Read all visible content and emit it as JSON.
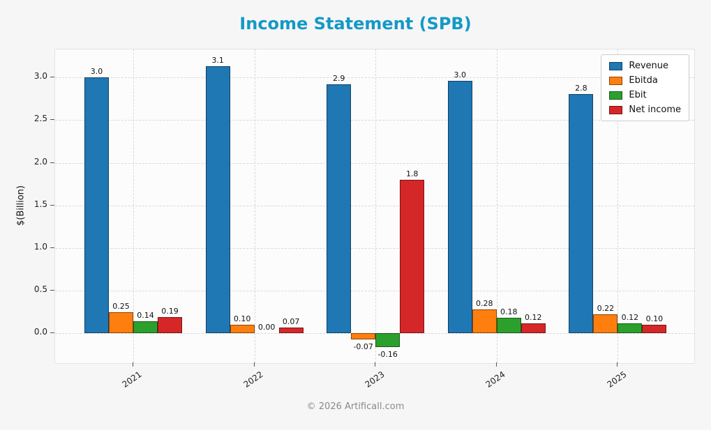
{
  "title": "Income Statement (SPB)",
  "ylabel": "$(Billion)",
  "footer": "© 2026 Artificall.com",
  "colors": {
    "title": "#1499c6",
    "grid": "#d8d8d8",
    "plot_background": "#fcfcfc",
    "figure_background": "#f6f6f7"
  },
  "chart_data": {
    "type": "bar",
    "title": "Income Statement (SPB)",
    "xlabel": "",
    "ylabel": "$(Billion)",
    "categories": [
      "2021",
      "2022",
      "2023",
      "2024",
      "2025"
    ],
    "series": [
      {
        "name": "Revenue",
        "color": "#1f77b4",
        "values": [
          3.0,
          3.13,
          2.92,
          2.96,
          2.81
        ],
        "labels": [
          "3.0",
          "3.1",
          "2.9",
          "3.0",
          "2.8"
        ]
      },
      {
        "name": "Ebitda",
        "color": "#ff7f0e",
        "values": [
          0.25,
          0.1,
          -0.07,
          0.28,
          0.22
        ],
        "labels": [
          "0.25",
          "0.10",
          "-0.07",
          "0.28",
          "0.22"
        ]
      },
      {
        "name": "Ebit",
        "color": "#2ca02c",
        "values": [
          0.14,
          0.0,
          -0.16,
          0.18,
          0.12
        ],
        "labels": [
          "0.14",
          "0.00",
          "-0.16",
          "0.18",
          "0.12"
        ]
      },
      {
        "name": "Net income",
        "color": "#d62728",
        "values": [
          0.19,
          0.07,
          1.8,
          0.12,
          0.1
        ],
        "labels": [
          "0.19",
          "0.07",
          "1.8",
          "0.12",
          "0.10"
        ]
      }
    ],
    "yticks": [
      0.0,
      0.5,
      1.0,
      1.5,
      2.0,
      2.5,
      3.0
    ],
    "ytick_labels": [
      "0.0",
      "0.5",
      "1.0",
      "1.5",
      "2.0",
      "2.5",
      "3.0"
    ],
    "ylim": [
      -0.35,
      3.33
    ],
    "grid": true,
    "grid_style": "dashed",
    "legend_position": "upper right"
  }
}
